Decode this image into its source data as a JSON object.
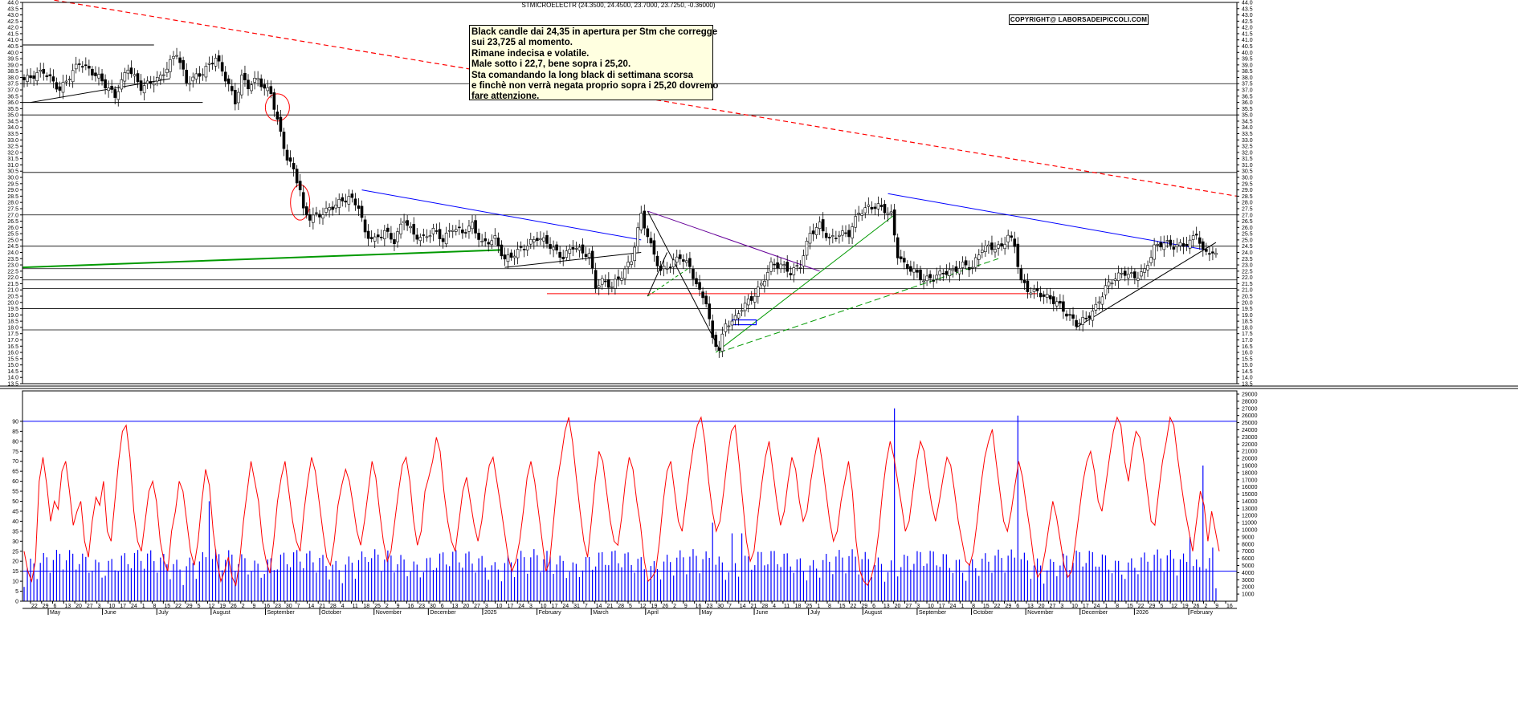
{
  "title": "STMICROELECTR (24.3500, 24.4500, 23.7000, 23.7250, -0.36000)",
  "copyright": "COPYRIGHT@ LABORSADEIPICCOLI.COM",
  "annotation": [
    "Black candle dai 24,35 in apertura per Stm che corregge",
    "sui 23,725 al momento.",
    "Rimane indecisa e volatile.",
    "Male sotto i 22,7, bene sopra i 25,20.",
    "Sta comandando la long black di settimana scorsa",
    "e finchè non verrà negata proprio sopra i 25,20 dovremo",
    "fare attenzione."
  ],
  "colors": {
    "price": "#000000",
    "trend_blue": "#0000ff",
    "trend_green": "#009900",
    "trend_red": "#ff0000",
    "oscillator": "#ff0000",
    "volume": "#0000ff"
  },
  "chart_data": [
    {
      "type": "candlestick",
      "title": "STMICROELECTR (24.3500, 24.4500, 23.7000, 23.7250, -0.36000)",
      "ylim": [
        13.5,
        44.0
      ],
      "y_ticks": [
        "13.5",
        "14.0",
        "14.5",
        "15.0",
        "15.5",
        "16.0",
        "16.5",
        "17.0",
        "17.5",
        "18.0",
        "18.5",
        "19.0",
        "19.5",
        "20.0",
        "20.5",
        "21.0",
        "21.5",
        "22.0",
        "22.5",
        "23.0",
        "23.5",
        "24.0",
        "24.5",
        "25.0",
        "25.5",
        "26.0",
        "26.5",
        "27.0",
        "27.5",
        "28.0",
        "28.5",
        "29.0",
        "29.5",
        "30.0",
        "30.5",
        "31.0",
        "31.5",
        "32.0",
        "32.5",
        "33.0",
        "33.5",
        "34.0",
        "34.5",
        "35.0",
        "35.5",
        "36.0",
        "36.5",
        "37.0",
        "37.5",
        "38.0",
        "38.5",
        "39.0",
        "39.5",
        "40.0",
        "40.5",
        "41.0",
        "41.5",
        "42.0",
        "42.5",
        "43.0",
        "43.5",
        "44.0"
      ],
      "x_day_ticks": [
        "22",
        "29",
        "6",
        "13",
        "20",
        "27",
        "3",
        "10",
        "17",
        "24",
        "1",
        "8",
        "15",
        "22",
        "29",
        "5",
        "12",
        "19",
        "26",
        "2",
        "9",
        "16",
        "23",
        "30",
        "7",
        "14",
        "21",
        "28",
        "4",
        "11",
        "18",
        "25",
        "2",
        "9",
        "16",
        "23",
        "30",
        "6",
        "13",
        "20",
        "27",
        "3",
        "10",
        "17",
        "24",
        "3",
        "10",
        "17",
        "24",
        "31",
        "7",
        "14",
        "21",
        "28",
        "5",
        "12",
        "19",
        "26",
        "2",
        "9",
        "16",
        "23",
        "30",
        "7",
        "14",
        "21",
        "28",
        "4",
        "11",
        "18",
        "25",
        "1",
        "8",
        "15",
        "22",
        "29",
        "6",
        "13",
        "20",
        "27",
        "3",
        "10",
        "17",
        "24",
        "1",
        "8",
        "15",
        "22",
        "29",
        "6",
        "13",
        "20",
        "27",
        "3",
        "10",
        "17",
        "24",
        "1",
        "8",
        "15",
        "22",
        "29",
        "5",
        "12",
        "19",
        "26",
        "2",
        "9",
        "16"
      ],
      "x_month_labels": [
        "May",
        "June",
        "July",
        "August",
        "September",
        "October",
        "November",
        "December",
        "2025",
        "February",
        "March",
        "April",
        "May",
        "June",
        "July",
        "August",
        "September",
        "October",
        "November",
        "December",
        "2026",
        "February"
      ],
      "close_path": [
        [
          0,
          37.8
        ],
        [
          6,
          38.5
        ],
        [
          11,
          37.0
        ],
        [
          17,
          39.2
        ],
        [
          23,
          38.0
        ],
        [
          28,
          36.5
        ],
        [
          32,
          38.8
        ],
        [
          36,
          37.2
        ],
        [
          42,
          38.0
        ],
        [
          47,
          40.0
        ],
        [
          50,
          37.6
        ],
        [
          55,
          38.4
        ],
        [
          59,
          39.6
        ],
        [
          63,
          37.4
        ],
        [
          65,
          36.0
        ],
        [
          67,
          38.0
        ],
        [
          69,
          37.3
        ],
        [
          72,
          37.9
        ],
        [
          74,
          37.1
        ],
        [
          76,
          36.8
        ],
        [
          78,
          34.5
        ],
        [
          81,
          31.5
        ],
        [
          83,
          30.6
        ],
        [
          85,
          29.0
        ],
        [
          86,
          27.3
        ],
        [
          88,
          26.8
        ],
        [
          91,
          27.0
        ],
        [
          94,
          27.5
        ],
        [
          97,
          28.0
        ],
        [
          100,
          28.4
        ],
        [
          103,
          27.7
        ],
        [
          105,
          25.5
        ],
        [
          108,
          25.0
        ],
        [
          111,
          25.7
        ],
        [
          114,
          24.9
        ],
        [
          117,
          26.7
        ],
        [
          120,
          25.4
        ],
        [
          123,
          25.1
        ],
        [
          126,
          25.8
        ],
        [
          129,
          25.0
        ],
        [
          132,
          26.0
        ],
        [
          135,
          25.6
        ],
        [
          138,
          26.2
        ],
        [
          141,
          24.7
        ],
        [
          145,
          25.1
        ],
        [
          148,
          23.4
        ],
        [
          151,
          23.9
        ],
        [
          155,
          24.6
        ],
        [
          158,
          25.2
        ],
        [
          161,
          24.8
        ],
        [
          164,
          24.0
        ],
        [
          166,
          23.6
        ],
        [
          169,
          24.5
        ],
        [
          172,
          24.0
        ],
        [
          174,
          23.8
        ],
        [
          176,
          21.3
        ],
        [
          178,
          21.7
        ],
        [
          181,
          21.3
        ],
        [
          184,
          22.2
        ],
        [
          187,
          23.4
        ],
        [
          190,
          27.0
        ],
        [
          193,
          24.5
        ],
        [
          196,
          22.5
        ],
        [
          199,
          23.0
        ],
        [
          202,
          23.7
        ],
        [
          205,
          22.8
        ],
        [
          208,
          20.8
        ],
        [
          210,
          20.1
        ],
        [
          212,
          17.0
        ],
        [
          214,
          16.3
        ],
        [
          216,
          18.2
        ],
        [
          219,
          18.7
        ],
        [
          221,
          19.6
        ],
        [
          224,
          20.3
        ],
        [
          227,
          21.4
        ],
        [
          230,
          23.0
        ],
        [
          233,
          23.0
        ],
        [
          236,
          22.4
        ],
        [
          239,
          23.0
        ],
        [
          242,
          25.5
        ],
        [
          245,
          26.2
        ],
        [
          248,
          25.0
        ],
        [
          251,
          25.5
        ],
        [
          254,
          25.5
        ],
        [
          257,
          27.2
        ],
        [
          260,
          27.6
        ],
        [
          263,
          27.7
        ],
        [
          265,
          27.4
        ],
        [
          267,
          27.0
        ],
        [
          269,
          23.8
        ],
        [
          271,
          23.0
        ],
        [
          274,
          22.5
        ],
        [
          277,
          21.8
        ],
        [
          280,
          22.0
        ],
        [
          283,
          22.4
        ],
        [
          286,
          22.5
        ],
        [
          289,
          23.0
        ],
        [
          292,
          22.8
        ],
        [
          295,
          24.4
        ],
        [
          298,
          24.4
        ],
        [
          301,
          24.4
        ],
        [
          303,
          25.4
        ],
        [
          305,
          24.5
        ],
        [
          307,
          21.7
        ],
        [
          309,
          21.0
        ],
        [
          312,
          20.8
        ],
        [
          315,
          20.4
        ],
        [
          318,
          20.0
        ],
        [
          321,
          19.1
        ],
        [
          324,
          18.3
        ],
        [
          327,
          18.7
        ],
        [
          330,
          19.6
        ],
        [
          333,
          21.2
        ],
        [
          336,
          22.0
        ],
        [
          339,
          22.4
        ],
        [
          342,
          22.0
        ],
        [
          345,
          22.5
        ],
        [
          348,
          24.4
        ],
        [
          351,
          24.8
        ],
        [
          354,
          24.5
        ],
        [
          357,
          24.6
        ],
        [
          359,
          24.8
        ],
        [
          361,
          25.6
        ],
        [
          363,
          24.0
        ],
        [
          365,
          24.1
        ],
        [
          367,
          23.7
        ]
      ],
      "horizontal_levels": [
        37.5,
        35.0,
        30.4,
        27.0,
        24.5,
        22.7,
        21.8,
        21.1,
        19.5,
        17.8
      ],
      "indicator": {
        "type": "line",
        "ylim": [
          0,
          100
        ],
        "y_ticks": [
          "0",
          "5",
          "10",
          "15",
          "20",
          "25",
          "30",
          "35",
          "40",
          "45",
          "50",
          "55",
          "60",
          "65",
          "70",
          "75",
          "80",
          "85",
          "90"
        ],
        "reference_levels": [
          90,
          15
        ],
        "values": [
          25,
          15,
          10,
          20,
          60,
          72,
          58,
          40,
          50,
          46,
          65,
          70,
          55,
          38,
          45,
          50,
          30,
          22,
          40,
          52,
          48,
          60,
          35,
          30,
          50,
          70,
          85,
          88,
          72,
          45,
          30,
          25,
          40,
          55,
          60,
          50,
          30,
          20,
          15,
          35,
          45,
          60,
          55,
          40,
          25,
          18,
          30,
          50,
          66,
          58,
          35,
          20,
          10,
          15,
          22,
          12,
          8,
          20,
          40,
          55,
          70,
          60,
          50,
          30,
          20,
          14,
          30,
          50,
          62,
          70,
          55,
          40,
          30,
          25,
          45,
          60,
          72,
          65,
          50,
          35,
          22,
          18,
          30,
          48,
          58,
          66,
          60,
          48,
          35,
          28,
          40,
          55,
          70,
          62,
          45,
          30,
          20,
          25,
          40,
          55,
          68,
          72,
          60,
          40,
          28,
          35,
          55,
          62,
          70,
          82,
          75,
          55,
          40,
          30,
          25,
          40,
          55,
          62,
          50,
          38,
          30,
          40,
          56,
          68,
          72,
          60,
          48,
          35,
          22,
          15,
          20,
          30,
          45,
          62,
          70,
          60,
          45,
          30,
          15,
          20,
          40,
          60,
          72,
          85,
          92,
          80,
          62,
          45,
          30,
          22,
          40,
          60,
          75,
          70,
          55,
          40,
          30,
          28,
          42,
          60,
          72,
          66,
          50,
          38,
          20,
          10,
          12,
          15,
          30,
          50,
          65,
          70,
          55,
          40,
          35,
          50,
          65,
          78,
          88,
          92,
          80,
          60,
          45,
          35,
          40,
          55,
          72,
          85,
          88,
          70,
          50,
          30,
          20,
          25,
          42,
          58,
          72,
          80,
          65,
          50,
          38,
          45,
          60,
          72,
          66,
          50,
          40,
          45,
          60,
          72,
          82,
          70,
          55,
          40,
          30,
          35,
          50,
          60,
          70,
          55,
          30,
          15,
          10,
          8,
          12,
          20,
          35,
          55,
          70,
          80,
          72,
          60,
          48,
          35,
          40,
          55,
          70,
          80,
          75,
          60,
          48,
          40,
          50,
          62,
          72,
          68,
          55,
          40,
          30,
          20,
          18,
          25,
          40,
          58,
          72,
          80,
          86,
          70,
          55,
          40,
          35,
          45,
          58,
          70,
          62,
          48,
          35,
          20,
          12,
          15,
          25,
          38,
          50,
          42,
          30,
          18,
          12,
          15,
          30,
          45,
          60,
          70,
          75,
          65,
          50,
          45,
          58,
          72,
          85,
          92,
          88,
          70,
          60,
          75,
          85,
          82,
          70,
          55,
          40,
          38,
          55,
          70,
          80,
          92,
          88,
          72,
          58,
          45,
          35,
          25,
          40,
          55,
          48,
          30,
          45,
          35,
          25
        ]
      },
      "volume": {
        "type": "bar",
        "ylim": [
          0,
          29000
        ],
        "y_ticks": [
          "1000",
          "2000",
          "3000",
          "4000",
          "5000",
          "6000",
          "7000",
          "8000",
          "9000",
          "10000",
          "11000",
          "12000",
          "13000",
          "14000",
          "15000",
          "16000",
          "17000",
          "18000",
          "19000",
          "20000",
          "21000",
          "22000",
          "23000",
          "24000",
          "25000",
          "26000",
          "27000",
          "28000",
          "29000"
        ],
        "reference_levels": [
          26000,
          5300
        ]
      }
    }
  ]
}
